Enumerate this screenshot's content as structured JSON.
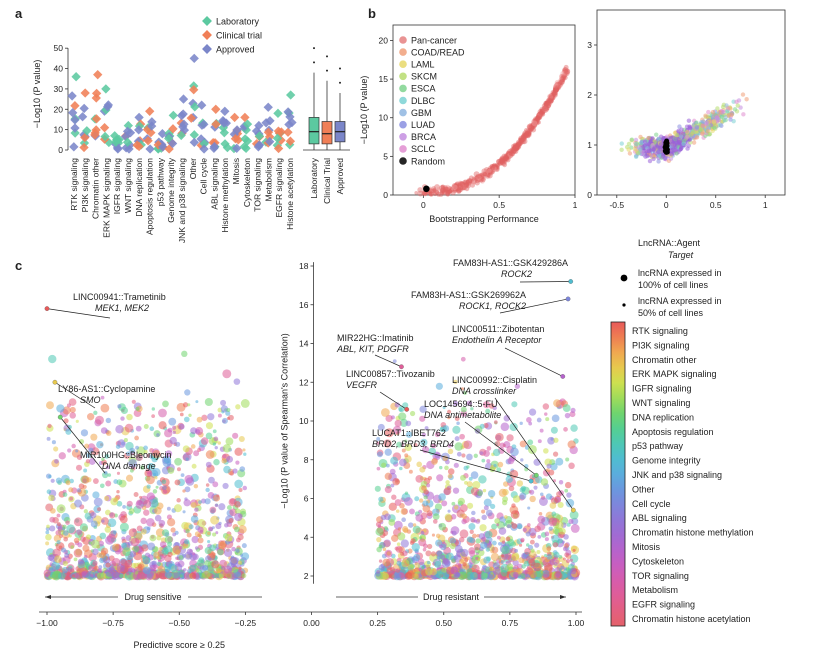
{
  "panels": {
    "a": "a",
    "b": "b",
    "c": "c"
  },
  "colors": {
    "laboratory": "#5cc9a0",
    "clinical": "#f07f57",
    "approved": "#7b86c9",
    "pancancer": "#e06262",
    "random": "#000000"
  },
  "chart_data": [
    {
      "type": "scatter",
      "panel": "a",
      "ylabel": "−Log10 (P value)",
      "ylim": [
        0,
        55
      ],
      "yticks": [
        0,
        10,
        20,
        30,
        40,
        50
      ],
      "categories": [
        "RTK signaling",
        "PI3K signaling",
        "Chromatin other",
        "ERK MAPK signaling",
        "IGFR signaling",
        "WNT signaling",
        "DNA replication",
        "Apoptosis regulation",
        "p53 pathway",
        "Genome integrity",
        "JNK and p38 signaling",
        "Other",
        "Cell cycle",
        "ABL signaling",
        "Histone methylation",
        "Mitosis",
        "Cytoskeleton",
        "TOR signaling",
        "Metabolism",
        "EGFR signaling",
        "Histone acetylation"
      ],
      "legend": [
        "Laboratory",
        "Clinical trial",
        "Approved"
      ],
      "max_values": [
        36,
        28,
        37,
        30,
        7,
        12,
        16,
        19,
        8,
        17,
        25,
        45,
        22,
        20,
        19,
        16,
        16,
        12,
        21,
        18,
        27
      ]
    },
    {
      "type": "box",
      "panel": "a-inset",
      "categories": [
        "Laboratory",
        "Clinical Trial",
        "Approved"
      ],
      "medians": [
        9,
        8,
        9
      ],
      "q1": [
        3,
        3,
        4
      ],
      "q3": [
        16,
        14,
        14
      ],
      "whisker_high": [
        38,
        34,
        28
      ]
    },
    {
      "type": "scatter",
      "panel": "b-left",
      "xlabel": "Bootstrapping Performance",
      "ylabel": "−Log10 (P value)",
      "xlim": [
        -0.2,
        1.0
      ],
      "ylim": [
        0,
        22
      ],
      "xticks": [
        0,
        0.5,
        1
      ],
      "yticks": [
        0,
        5,
        10,
        15,
        20
      ],
      "legend": [
        "Pan-cancer",
        "COAD/READ",
        "LAML",
        "SKCM",
        "ESCA",
        "DLBC",
        "GBM",
        "LUAD",
        "BRCA",
        "SCLC",
        "Random"
      ],
      "legend_colors": [
        "#e58080",
        "#f0a07a",
        "#e8d86a",
        "#b7dc6f",
        "#7fd48e",
        "#7bd2d3",
        "#8fb6e0",
        "#8a8fe0",
        "#c48ee0",
        "#e08ed0",
        "#000000"
      ],
      "random_point": [
        0.02,
        0.8
      ]
    },
    {
      "type": "scatter",
      "panel": "b-right",
      "xlim": [
        -0.7,
        1.2
      ],
      "ylim": [
        0,
        3.7
      ],
      "xticks": [
        -0.5,
        0,
        0.5,
        1
      ],
      "yticks": [
        0,
        1,
        2,
        3
      ]
    },
    {
      "type": "scatter",
      "panel": "c",
      "xlabel": "Predictive score ≥ 0.25",
      "ylabel": "−Log10 (P value of Spearman's Correlation)",
      "xlim": [
        -1.05,
        1.05
      ],
      "ylim": [
        1.2,
        18.5
      ],
      "xticks": [
        -1.0,
        -0.75,
        -0.5,
        -0.25,
        0.0,
        0.25,
        0.5,
        0.75,
        1.0
      ],
      "xtick_labels": [
        "−1.00",
        "−0.75",
        "−0.50",
        "−0.25",
        "0.00",
        "0.25",
        "0.50",
        "0.75",
        "1.00"
      ],
      "yticks": [
        2,
        4,
        6,
        8,
        10,
        12,
        14,
        16,
        18
      ],
      "sensitive_label": "Drug sensitive",
      "resistant_label": "Drug resistant",
      "annotations": [
        {
          "agent": "LINC00941::Trametinib",
          "target": "MEK1, MEK2",
          "x": -1.0,
          "y": 15.8
        },
        {
          "agent": "LY86-AS1::Cyclopamine",
          "target": "SMO",
          "x": -0.97,
          "y": 12.0
        },
        {
          "agent": "MIR100HG::Bleomycin",
          "target": "DNA damage",
          "x": -0.95,
          "y": 10.2
        },
        {
          "agent": "FAM83H-AS1::GSK429286A",
          "target": "ROCK2",
          "x": 0.98,
          "y": 17.2
        },
        {
          "agent": "FAM83H-AS1::GSK269962A",
          "target": "ROCK1, ROCK2",
          "x": 0.97,
          "y": 16.3
        },
        {
          "agent": "LINC00511::Zibotentan",
          "target": "Endothelin A Receptor",
          "x": 0.95,
          "y": 12.3
        },
        {
          "agent": "MIR22HG::Imatinib",
          "target": "ABL, KIT, PDGFR",
          "x": 0.34,
          "y": 12.8
        },
        {
          "agent": "LINC00857::Tivozanib",
          "target": "VEGFR",
          "x": 0.36,
          "y": 10.6
        },
        {
          "agent": "LINC00992::Cisplatin",
          "target": "DNA crosslinker",
          "x": 0.99,
          "y": 5.4
        },
        {
          "agent": "LOC145694::5-FU",
          "target": "DNA antimetabolite",
          "x": 0.85,
          "y": 7.2
        },
        {
          "agent": "LUCAT1::IBET762",
          "target": "BRD2, BRD3, BRD4",
          "x": 0.83,
          "y": 6.9
        }
      ]
    }
  ],
  "legend_c": {
    "title": "LncRNA::Agent",
    "subtitle": "Target",
    "size_large": "lncRNA expressed in 100% of cell lines",
    "size_small": "lncRNA expressed in 50% of cell lines",
    "size_large_line1": "lncRNA expressed in",
    "size_large_line2": "100% of cell lines",
    "size_small_line1": "lncRNA expressed in",
    "size_small_line2": "50% of cell lines",
    "categories": [
      "RTK signaling",
      "PI3K signaling",
      "Chromatin other",
      "ERK MAPK signaling",
      "IGFR signaling",
      "WNT signaling",
      "DNA replication",
      "Apoptosis regulation",
      "p53 pathway",
      "Genome integrity",
      "JNK and p38 signaling",
      "Other",
      "Cell cycle",
      "ABL signaling",
      "Chromatin histone methylation",
      "Mitosis",
      "Cytoskeleton",
      "TOR signaling",
      "Metabolism",
      "EGFR signaling",
      "Chromatin histone acetylation"
    ],
    "gradient": [
      "#e85a5a",
      "#ee7e52",
      "#f0a850",
      "#e7c94e",
      "#cde04f",
      "#9fdc5a",
      "#6fd46e",
      "#55cf91",
      "#4ec8b4",
      "#4fbdd0",
      "#5aaddc",
      "#6a98de",
      "#7d86dc",
      "#8f77d8",
      "#a06bd3",
      "#b563cc",
      "#c85ec0",
      "#d65cac",
      "#df5d98",
      "#e35f80",
      "#e4616a"
    ]
  }
}
